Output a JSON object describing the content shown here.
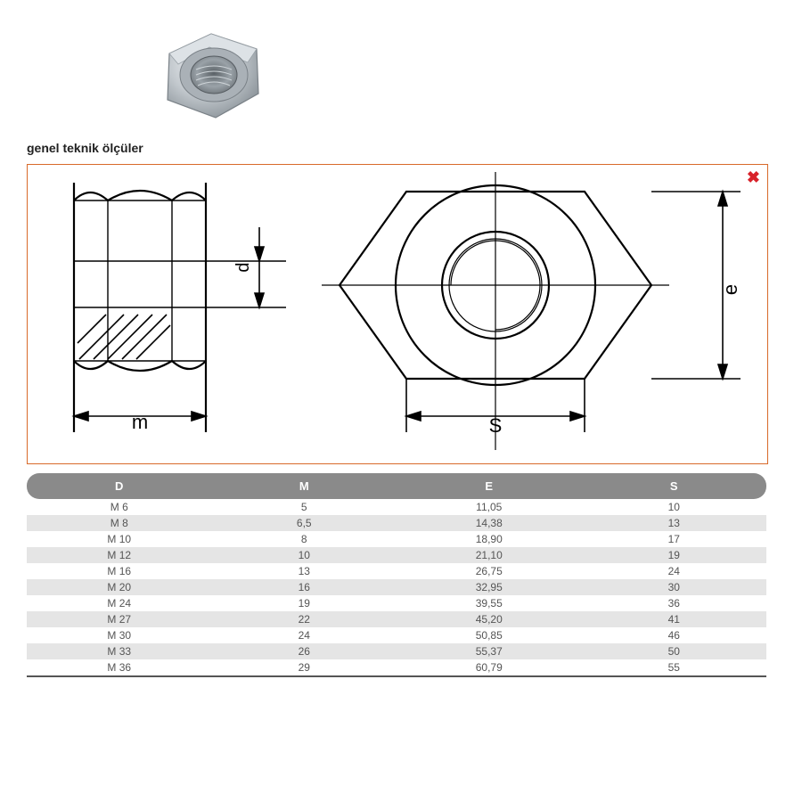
{
  "caption": "genel teknik ölçüler",
  "close_symbol": "✖",
  "diagram": {
    "stroke": "#000000",
    "stroke_width": 2,
    "label_m": "m",
    "label_d": "d",
    "label_S": "S",
    "label_e": "e"
  },
  "photo": {
    "body_color": "#c9ced2",
    "dark": "#8a9096",
    "light": "#e8ecef",
    "hole_dark": "#5a6166"
  },
  "table": {
    "header_bg": "#8a8a8a",
    "header_fg": "#ffffff",
    "row_even_bg": "#e5e5e5",
    "row_odd_bg": "#ffffff",
    "cell_fg": "#555555",
    "columns": [
      "D",
      "M",
      "E",
      "S"
    ],
    "rows": [
      [
        "M 6",
        "5",
        "11,05",
        "10"
      ],
      [
        "M 8",
        "6,5",
        "14,38",
        "13"
      ],
      [
        "M 10",
        "8",
        "18,90",
        "17"
      ],
      [
        "M 12",
        "10",
        "21,10",
        "19"
      ],
      [
        "M 16",
        "13",
        "26,75",
        "24"
      ],
      [
        "M 20",
        "16",
        "32,95",
        "30"
      ],
      [
        "M 24",
        "19",
        "39,55",
        "36"
      ],
      [
        "M 27",
        "22",
        "45,20",
        "41"
      ],
      [
        "M 30",
        "24",
        "50,85",
        "46"
      ],
      [
        "M 33",
        "26",
        "55,37",
        "50"
      ],
      [
        "M 36",
        "29",
        "60,79",
        "55"
      ]
    ]
  }
}
